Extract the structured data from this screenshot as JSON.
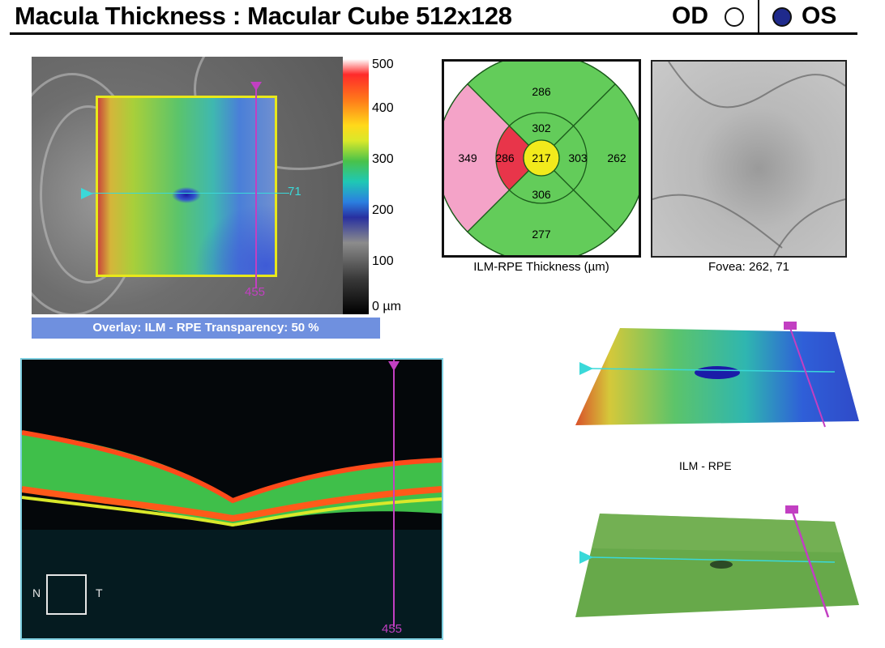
{
  "header": {
    "title": "Macula Thickness : Macular Cube 512x128",
    "od_label": "OD",
    "os_label": "OS"
  },
  "fundus": {
    "h_marker_value": "71",
    "v_marker_value": "455"
  },
  "scale": {
    "labels": [
      "500",
      "400",
      "300",
      "200",
      "100",
      "0 µm"
    ]
  },
  "overlay": {
    "text": "Overlay: ILM - RPE  Transparency: 50 %"
  },
  "etdrs": {
    "center": "217",
    "inner_superior": "302",
    "inner_nasal": "303",
    "inner_inferior": "306",
    "inner_temporal": "286",
    "outer_superior": "286",
    "outer_nasal": "262",
    "outer_inferior": "277",
    "outer_temporal": "349",
    "caption": "ILM-RPE Thickness (µm)"
  },
  "fovea": {
    "caption": "Fovea: 262, 71"
  },
  "bscan": {
    "n_label": "N",
    "t_label": "T",
    "slice_value": "455"
  },
  "maps3d": {
    "ilm_rpe_label": "ILM - RPE"
  },
  "colors": {
    "accent_magenta": "#c23fc2",
    "accent_cyan": "#3ad9d9",
    "os_radio": "#1f2a8c",
    "overlay_bar": "#6f90df"
  }
}
